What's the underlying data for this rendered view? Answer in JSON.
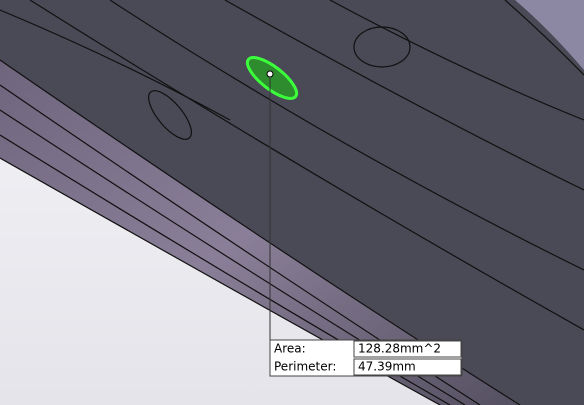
{
  "measurement": {
    "rows": [
      [
        "Area:",
        "128.28mm^2"
      ],
      [
        "Perimeter:",
        "47.39mm"
      ]
    ]
  }
}
